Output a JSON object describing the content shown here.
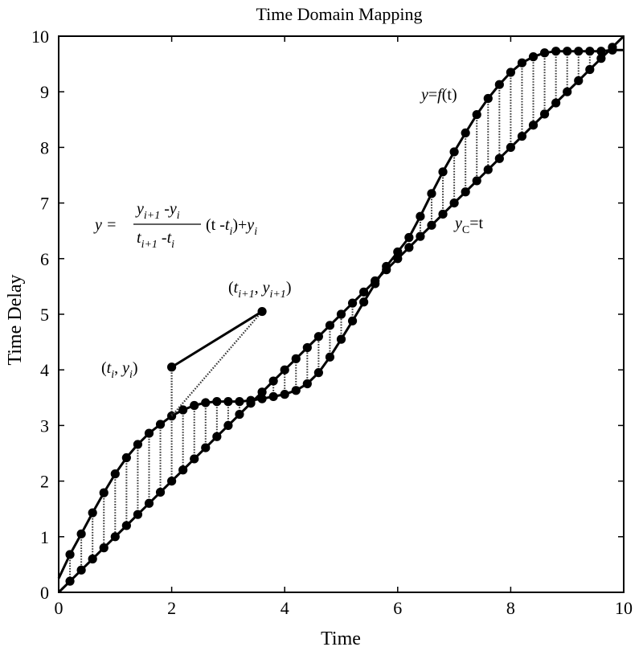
{
  "chart_data": {
    "type": "line",
    "title": "Time Domain Mapping",
    "xlabel": "Time",
    "ylabel": "Time Delay",
    "xlim": [
      0,
      10
    ],
    "ylim": [
      0,
      10
    ],
    "xticks": [
      "0",
      "2",
      "4",
      "6",
      "8",
      "10"
    ],
    "yticks": [
      "0",
      "1",
      "2",
      "3",
      "4",
      "5",
      "6",
      "7",
      "8",
      "9",
      "10"
    ],
    "grid": false,
    "legend": "none",
    "sample_t": [
      0.2,
      0.4,
      0.6,
      0.8,
      1.0,
      1.2,
      1.4,
      1.6,
      1.8,
      2.0,
      2.2,
      2.4,
      2.6,
      2.8,
      3.0,
      3.2,
      3.4,
      3.6,
      3.8,
      4.0,
      4.2,
      4.4,
      4.6,
      4.8,
      5.0,
      5.2,
      5.4,
      5.6,
      5.8,
      6.0,
      6.2,
      6.4,
      6.6,
      6.8,
      7.0,
      7.2,
      7.4,
      7.6,
      7.8,
      8.0,
      8.2,
      8.4,
      8.6,
      8.8,
      9.0,
      9.2,
      9.4,
      9.6,
      9.8
    ],
    "series": [
      {
        "name": "y=f(t)",
        "values": [
          0.68,
          1.05,
          1.43,
          1.79,
          2.13,
          2.42,
          2.66,
          2.86,
          3.02,
          3.17,
          3.28,
          3.36,
          3.41,
          3.43,
          3.43,
          3.43,
          3.45,
          3.48,
          3.52,
          3.56,
          3.63,
          3.75,
          3.95,
          4.23,
          4.55,
          4.88,
          5.22,
          5.55,
          5.86,
          6.12,
          6.38,
          6.76,
          7.17,
          7.56,
          7.92,
          8.26,
          8.59,
          8.88,
          9.13,
          9.35,
          9.52,
          9.63,
          9.7,
          9.73,
          9.73,
          9.73,
          9.73,
          9.73,
          9.75
        ]
      },
      {
        "name": "yC=t",
        "values": [
          0.2,
          0.4,
          0.6,
          0.8,
          1.0,
          1.2,
          1.4,
          1.6,
          1.8,
          2.0,
          2.2,
          2.4,
          2.6,
          2.8,
          3.0,
          3.2,
          3.4,
          3.6,
          3.8,
          4.0,
          4.2,
          4.4,
          4.6,
          4.8,
          5.0,
          5.2,
          5.4,
          5.6,
          5.8,
          6.0,
          6.2,
          6.4,
          6.6,
          6.8,
          7.0,
          7.2,
          7.4,
          7.6,
          7.8,
          8.0,
          8.2,
          8.4,
          8.6,
          8.8,
          9.0,
          9.2,
          9.4,
          9.6,
          9.8
        ]
      }
    ],
    "f_curve_endpoints": {
      "start": [
        0,
        0.25
      ],
      "end": [
        10,
        9.75
      ]
    },
    "yc_curve_endpoints": {
      "start": [
        0,
        0
      ],
      "end": [
        10,
        10
      ]
    },
    "interpolation_example": {
      "point_i": [
        2.0,
        4.05
      ],
      "point_i1": [
        3.6,
        5.05
      ],
      "label_i": {
        "open": "(",
        "t": "t",
        "sub": "i",
        "sep": ", ",
        "y": "y",
        "close": ")"
      },
      "label_i1": {
        "open": "(",
        "t": "t",
        "sub": "i+1",
        "sep": ", ",
        "y": "y",
        "close": ")"
      }
    },
    "annotations": {
      "f_label": {
        "y": "y",
        "eq": "=",
        "f": "f",
        "arg": "(t)"
      },
      "yc_label": {
        "y": "y",
        "sub": "C",
        "eq": "=t"
      },
      "formula": {
        "lhs": "y =",
        "num_y1": "y",
        "num_sub1": "i+1",
        "num_minus": " -",
        "num_y2": "y",
        "num_sub2": "i",
        "den_t1": "t",
        "den_sub1": "i+1",
        "den_minus": " -",
        "den_t2": "t",
        "den_sub2": "i",
        "rhs_open": "(t -",
        "rhs_t": "t",
        "rhs_sub": "i",
        "rhs_close": ")+",
        "rhs_y": "y",
        "rhs_ysub": "i"
      }
    }
  }
}
